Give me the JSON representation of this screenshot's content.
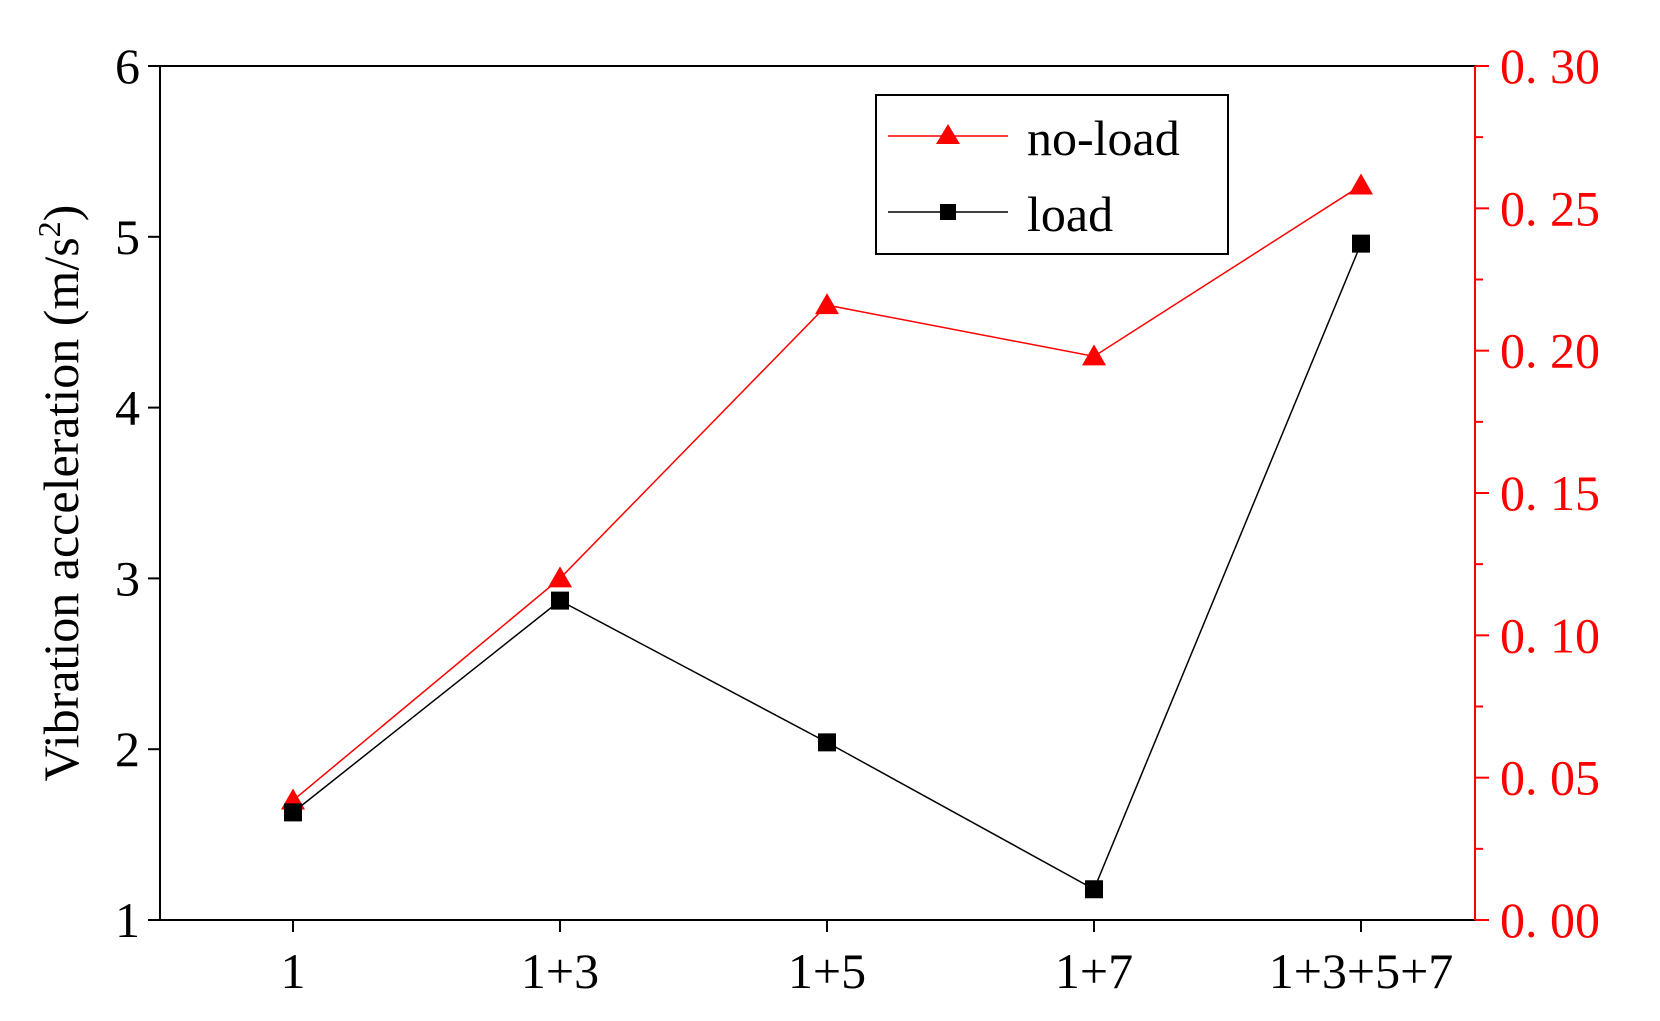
{
  "colors": {
    "left_axis": "#000000",
    "right_axis": "#ff0000",
    "no_load": "#ff0000",
    "load": "#000000"
  },
  "chart_data": {
    "type": "line",
    "categories": [
      "1",
      "1+3",
      "1+5",
      "1+7",
      "1+3+5+7"
    ],
    "ylabel": "Vibration acceleration (m/s",
    "ylabel_sup": "2",
    "ylabel_tail": ")",
    "y_left": {
      "lim": [
        1,
        6
      ],
      "ticks": [
        1,
        2,
        3,
        4,
        5,
        6
      ],
      "tick_labels": [
        "1",
        "2",
        "3",
        "4",
        "5",
        "6"
      ]
    },
    "y_right": {
      "lim": [
        0,
        0.3
      ],
      "ticks": [
        0,
        0.05,
        0.1,
        0.15,
        0.2,
        0.25,
        0.3
      ],
      "tick_labels": [
        "0. 00",
        "0. 05",
        "0. 10",
        "0. 15",
        "0. 20",
        "0. 25",
        "0. 30"
      ]
    },
    "series": [
      {
        "name": "no-load",
        "axis": "left",
        "marker": "triangle",
        "color": "#ff0000",
        "values": [
          1.7,
          3.0,
          4.6,
          4.3,
          5.3
        ]
      },
      {
        "name": "load",
        "axis": "left",
        "marker": "square",
        "color": "#000000",
        "values": [
          1.63,
          2.87,
          2.04,
          1.18,
          4.96
        ]
      }
    ],
    "legend": {
      "position": "top-right"
    },
    "grid": false
  }
}
